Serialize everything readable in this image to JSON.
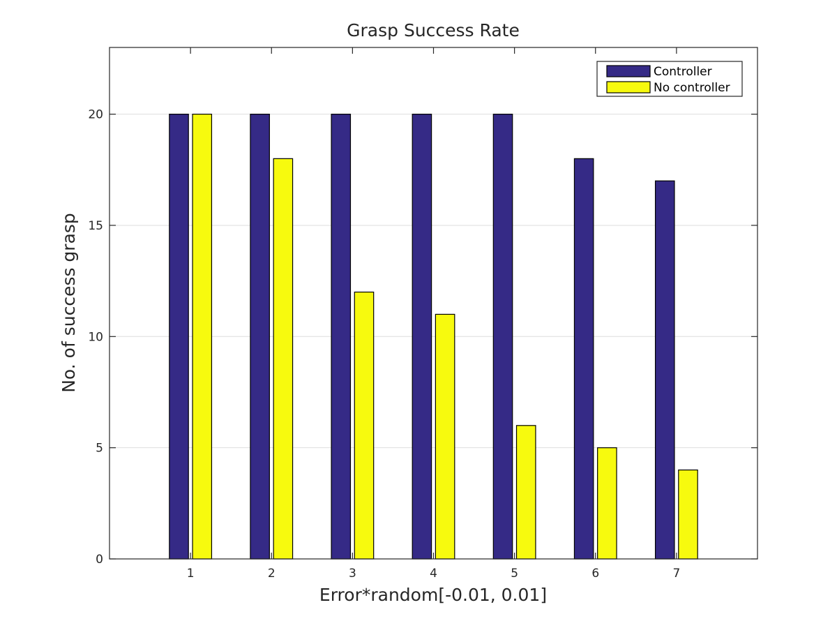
{
  "chart_data": {
    "type": "bar",
    "title": "Grasp Success Rate",
    "xlabel": "Error*random[-0.01, 0.01]",
    "ylabel": "No. of success grasp",
    "categories": [
      "1",
      "2",
      "3",
      "4",
      "5",
      "6",
      "7"
    ],
    "series": [
      {
        "name": "Controller",
        "color": "#352a86",
        "values": [
          20,
          20,
          20,
          20,
          20,
          18,
          17
        ]
      },
      {
        "name": "No controller",
        "color": "#f7fa0e",
        "values": [
          20,
          18,
          12,
          11,
          6,
          5,
          4
        ]
      }
    ],
    "xlim": [
      0,
      8
    ],
    "ylim": [
      0,
      23
    ],
    "yticks": [
      0,
      5,
      10,
      15,
      20
    ],
    "grid": "horizontal",
    "legend_position": "top-right"
  }
}
